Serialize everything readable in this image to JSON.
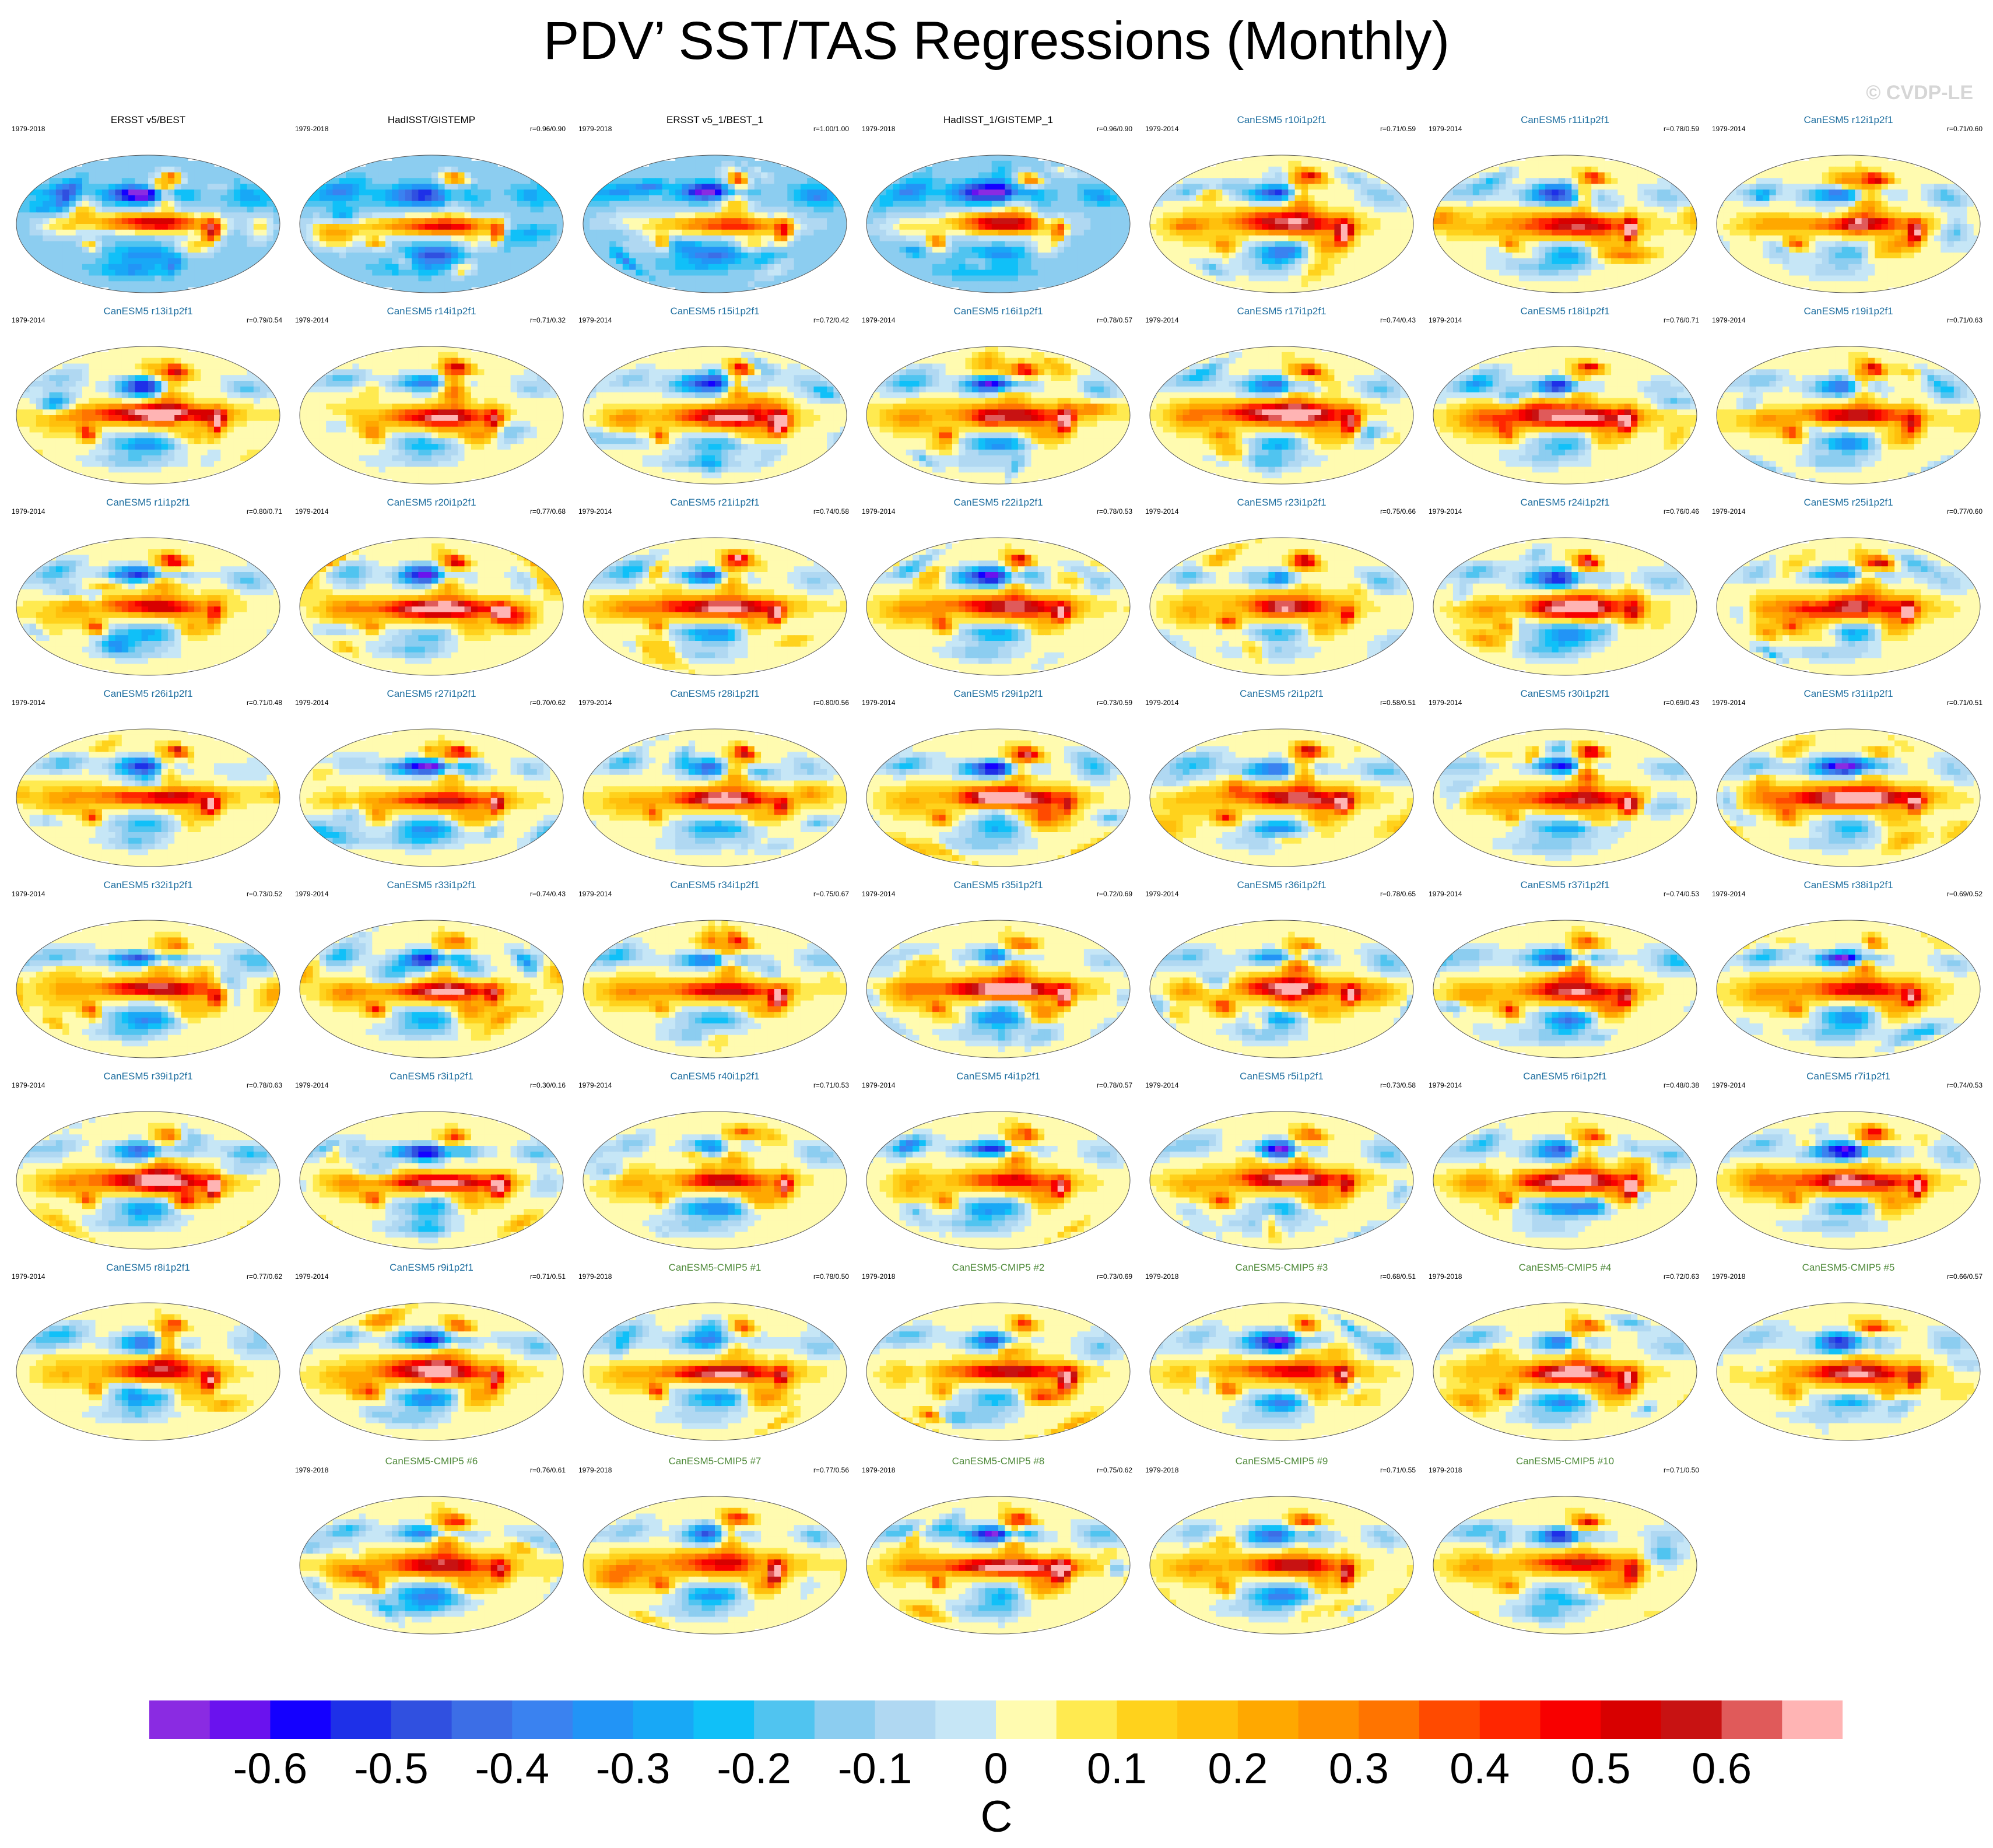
{
  "title": "PDV’ SST/TAS Regressions (Monthly)",
  "credit": "© CVDP-LE",
  "colors": {
    "title_obs": "#000000",
    "title_lens": "#1f6fa0",
    "title_cmip": "#4f8a3a"
  },
  "chart_data": {
    "type": "heatmap",
    "description_units": "C",
    "colorbar": {
      "label": "C",
      "ticks": [
        "-0.6",
        "-0.5",
        "-0.4",
        "-0.3",
        "-0.2",
        "-0.1",
        "0",
        "0.1",
        "0.2",
        "0.3",
        "0.4",
        "0.5",
        "0.6"
      ],
      "tick_values": [
        -0.6,
        -0.5,
        -0.4,
        -0.3,
        -0.2,
        -0.1,
        0,
        0.1,
        0.2,
        0.3,
        0.4,
        0.5,
        0.6
      ],
      "range": [
        -0.7,
        0.7
      ],
      "colors": [
        "#8a2be2",
        "#6a12ee",
        "#1400ff",
        "#1e30e8",
        "#3050e0",
        "#3c6ee6",
        "#3a82f0",
        "#2294f6",
        "#18a8f6",
        "#10c0f8",
        "#50c4f0",
        "#8ccdf0",
        "#b0d8f2",
        "#c6e6f6",
        "#fffbb0",
        "#ffea50",
        "#ffd21c",
        "#ffc00c",
        "#ffa800",
        "#ff9000",
        "#ff7400",
        "#ff4a00",
        "#ff2600",
        "#f80000",
        "#d80000",
        "#c81212",
        "#e05a5a",
        "#ffb4b4"
      ]
    },
    "panels": [
      {
        "title": "ERSST v5/BEST",
        "period": "1979-2018",
        "r": "",
        "group": "obs"
      },
      {
        "title": "HadISST/GISTEMP",
        "period": "1979-2018",
        "r": "r=0.96/0.90",
        "group": "obs"
      },
      {
        "title": "ERSST v5_1/BEST_1",
        "period": "1979-2018",
        "r": "r=1.00/1.00",
        "group": "obs"
      },
      {
        "title": "HadISST_1/GISTEMP_1",
        "period": "1979-2018",
        "r": "r=0.96/0.90",
        "group": "obs"
      },
      {
        "title": "CanESM5 r10i1p2f1",
        "period": "1979-2014",
        "r": "r=0.71/0.59",
        "group": "lens"
      },
      {
        "title": "CanESM5 r11i1p2f1",
        "period": "1979-2014",
        "r": "r=0.78/0.59",
        "group": "lens"
      },
      {
        "title": "CanESM5 r12i1p2f1",
        "period": "1979-2014",
        "r": "r=0.71/0.60",
        "group": "lens"
      },
      {
        "title": "CanESM5 r13i1p2f1",
        "period": "1979-2014",
        "r": "r=0.79/0.54",
        "group": "lens"
      },
      {
        "title": "CanESM5 r14i1p2f1",
        "period": "1979-2014",
        "r": "r=0.71/0.32",
        "group": "lens"
      },
      {
        "title": "CanESM5 r15i1p2f1",
        "period": "1979-2014",
        "r": "r=0.72/0.42",
        "group": "lens"
      },
      {
        "title": "CanESM5 r16i1p2f1",
        "period": "1979-2014",
        "r": "r=0.78/0.57",
        "group": "lens"
      },
      {
        "title": "CanESM5 r17i1p2f1",
        "period": "1979-2014",
        "r": "r=0.74/0.43",
        "group": "lens"
      },
      {
        "title": "CanESM5 r18i1p2f1",
        "period": "1979-2014",
        "r": "r=0.76/0.71",
        "group": "lens"
      },
      {
        "title": "CanESM5 r19i1p2f1",
        "period": "1979-2014",
        "r": "r=0.71/0.63",
        "group": "lens"
      },
      {
        "title": "CanESM5 r1i1p2f1",
        "period": "1979-2014",
        "r": "r=0.80/0.71",
        "group": "lens"
      },
      {
        "title": "CanESM5 r20i1p2f1",
        "period": "1979-2014",
        "r": "r=0.77/0.68",
        "group": "lens"
      },
      {
        "title": "CanESM5 r21i1p2f1",
        "period": "1979-2014",
        "r": "r=0.74/0.58",
        "group": "lens"
      },
      {
        "title": "CanESM5 r22i1p2f1",
        "period": "1979-2014",
        "r": "r=0.78/0.53",
        "group": "lens"
      },
      {
        "title": "CanESM5 r23i1p2f1",
        "period": "1979-2014",
        "r": "r=0.75/0.66",
        "group": "lens"
      },
      {
        "title": "CanESM5 r24i1p2f1",
        "period": "1979-2014",
        "r": "r=0.76/0.46",
        "group": "lens"
      },
      {
        "title": "CanESM5 r25i1p2f1",
        "period": "1979-2014",
        "r": "r=0.77/0.60",
        "group": "lens"
      },
      {
        "title": "CanESM5 r26i1p2f1",
        "period": "1979-2014",
        "r": "r=0.71/0.48",
        "group": "lens"
      },
      {
        "title": "CanESM5 r27i1p2f1",
        "period": "1979-2014",
        "r": "r=0.70/0.62",
        "group": "lens"
      },
      {
        "title": "CanESM5 r28i1p2f1",
        "period": "1979-2014",
        "r": "r=0.80/0.56",
        "group": "lens"
      },
      {
        "title": "CanESM5 r29i1p2f1",
        "period": "1979-2014",
        "r": "r=0.73/0.59",
        "group": "lens"
      },
      {
        "title": "CanESM5 r2i1p2f1",
        "period": "1979-2014",
        "r": "r=0.58/0.51",
        "group": "lens"
      },
      {
        "title": "CanESM5 r30i1p2f1",
        "period": "1979-2014",
        "r": "r=0.69/0.43",
        "group": "lens"
      },
      {
        "title": "CanESM5 r31i1p2f1",
        "period": "1979-2014",
        "r": "r=0.71/0.51",
        "group": "lens"
      },
      {
        "title": "CanESM5 r32i1p2f1",
        "period": "1979-2014",
        "r": "r=0.73/0.52",
        "group": "lens"
      },
      {
        "title": "CanESM5 r33i1p2f1",
        "period": "1979-2014",
        "r": "r=0.74/0.43",
        "group": "lens"
      },
      {
        "title": "CanESM5 r34i1p2f1",
        "period": "1979-2014",
        "r": "r=0.75/0.67",
        "group": "lens"
      },
      {
        "title": "CanESM5 r35i1p2f1",
        "period": "1979-2014",
        "r": "r=0.72/0.69",
        "group": "lens"
      },
      {
        "title": "CanESM5 r36i1p2f1",
        "period": "1979-2014",
        "r": "r=0.78/0.65",
        "group": "lens"
      },
      {
        "title": "CanESM5 r37i1p2f1",
        "period": "1979-2014",
        "r": "r=0.74/0.53",
        "group": "lens"
      },
      {
        "title": "CanESM5 r38i1p2f1",
        "period": "1979-2014",
        "r": "r=0.69/0.52",
        "group": "lens"
      },
      {
        "title": "CanESM5 r39i1p2f1",
        "period": "1979-2014",
        "r": "r=0.78/0.63",
        "group": "lens"
      },
      {
        "title": "CanESM5 r3i1p2f1",
        "period": "1979-2014",
        "r": "r=0.30/0.16",
        "group": "lens"
      },
      {
        "title": "CanESM5 r40i1p2f1",
        "period": "1979-2014",
        "r": "r=0.71/0.53",
        "group": "lens"
      },
      {
        "title": "CanESM5 r4i1p2f1",
        "period": "1979-2014",
        "r": "r=0.78/0.57",
        "group": "lens"
      },
      {
        "title": "CanESM5 r5i1p2f1",
        "period": "1979-2014",
        "r": "r=0.73/0.58",
        "group": "lens"
      },
      {
        "title": "CanESM5 r6i1p2f1",
        "period": "1979-2014",
        "r": "r=0.48/0.38",
        "group": "lens"
      },
      {
        "title": "CanESM5 r7i1p2f1",
        "period": "1979-2014",
        "r": "r=0.74/0.53",
        "group": "lens"
      },
      {
        "title": "CanESM5 r8i1p2f1",
        "period": "1979-2014",
        "r": "r=0.77/0.62",
        "group": "lens"
      },
      {
        "title": "CanESM5 r9i1p2f1",
        "period": "1979-2014",
        "r": "r=0.71/0.51",
        "group": "lens"
      },
      {
        "title": "CanESM5-CMIP5 #1",
        "period": "1979-2018",
        "r": "r=0.78/0.50",
        "group": "cmip"
      },
      {
        "title": "CanESM5-CMIP5 #2",
        "period": "1979-2018",
        "r": "r=0.73/0.69",
        "group": "cmip"
      },
      {
        "title": "CanESM5-CMIP5 #3",
        "period": "1979-2018",
        "r": "r=0.68/0.51",
        "group": "cmip"
      },
      {
        "title": "CanESM5-CMIP5 #4",
        "period": "1979-2018",
        "r": "r=0.72/0.63",
        "group": "cmip"
      },
      {
        "title": "CanESM5-CMIP5 #5",
        "period": "1979-2018",
        "r": "r=0.66/0.57",
        "group": "cmip"
      },
      {
        "title": "CanESM5-CMIP5 #6",
        "period": "1979-2018",
        "r": "r=0.76/0.61",
        "group": "cmip"
      },
      {
        "title": "CanESM5-CMIP5 #7",
        "period": "1979-2018",
        "r": "r=0.77/0.56",
        "group": "cmip"
      },
      {
        "title": "CanESM5-CMIP5 #8",
        "period": "1979-2018",
        "r": "r=0.75/0.62",
        "group": "cmip"
      },
      {
        "title": "CanESM5-CMIP5 #9",
        "period": "1979-2018",
        "r": "r=0.71/0.55",
        "group": "cmip"
      },
      {
        "title": "CanESM5-CMIP5 #10",
        "period": "1979-2018",
        "r": "r=0.71/0.50",
        "group": "cmip"
      }
    ]
  }
}
